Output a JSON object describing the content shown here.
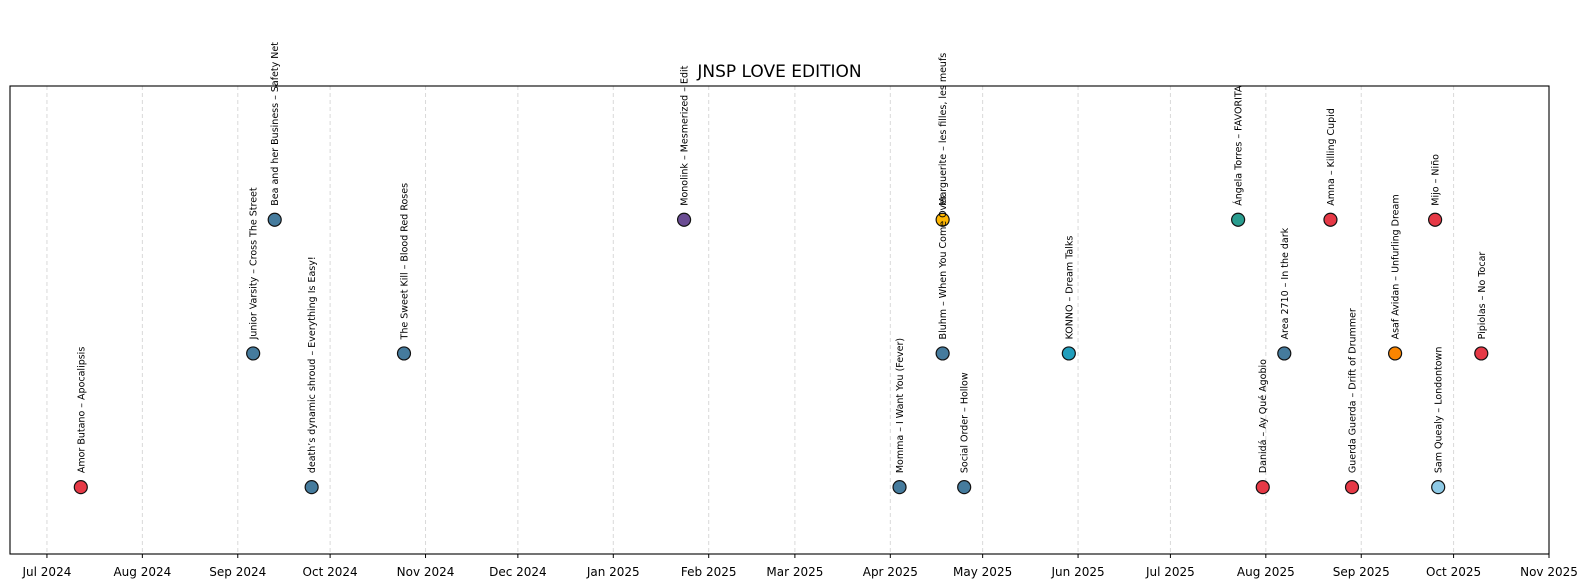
{
  "chart_data": {
    "type": "scatter",
    "title": "JNSP LOVE EDITION",
    "xlabel": "",
    "ylabel": "",
    "x_is_date": true,
    "xlim": [
      "2024-06-19",
      "2025-11-01"
    ],
    "ylim": [
      0.5,
      4.0
    ],
    "y_ticks_visible": false,
    "grid": "vertical dashed at month ticks",
    "x_ticks": [
      {
        "date": "2024-07-01",
        "label": "Jul 2024"
      },
      {
        "date": "2024-08-01",
        "label": "Aug 2024"
      },
      {
        "date": "2024-09-01",
        "label": "Sep 2024"
      },
      {
        "date": "2024-10-01",
        "label": "Oct 2024"
      },
      {
        "date": "2024-11-01",
        "label": "Nov 2024"
      },
      {
        "date": "2024-12-01",
        "label": "Dec 2024"
      },
      {
        "date": "2025-01-01",
        "label": "Jan 2025"
      },
      {
        "date": "2025-02-01",
        "label": "Feb 2025"
      },
      {
        "date": "2025-03-01",
        "label": "Mar 2025"
      },
      {
        "date": "2025-04-01",
        "label": "Apr 2025"
      },
      {
        "date": "2025-05-01",
        "label": "May 2025"
      },
      {
        "date": "2025-06-01",
        "label": "Jun 2025"
      },
      {
        "date": "2025-07-01",
        "label": "Jul 2025"
      },
      {
        "date": "2025-08-01",
        "label": "Aug 2025"
      },
      {
        "date": "2025-09-01",
        "label": "Sep 2025"
      },
      {
        "date": "2025-10-01",
        "label": "Oct 2025"
      },
      {
        "date": "2025-11-01",
        "label": "Nov 2025"
      }
    ],
    "points": [
      {
        "date": "2024-07-12",
        "level": 1,
        "label": "Amor Butano – Apocalipsis",
        "color": "#e63946"
      },
      {
        "date": "2024-09-06",
        "level": 2,
        "label": "Junior Varsity – Cross The Street",
        "color": "#457b9d"
      },
      {
        "date": "2024-09-13",
        "level": 3,
        "label": "Bea and her Business – Safety Net",
        "color": "#457b9d"
      },
      {
        "date": "2024-09-25",
        "level": 1,
        "label": "death’s dynamic shroud – Everything Is Easy!",
        "color": "#457b9d"
      },
      {
        "date": "2024-10-25",
        "level": 2,
        "label": "The Sweet Kill – Blood Red Roses",
        "color": "#457b9d"
      },
      {
        "date": "2025-01-24",
        "level": 3,
        "label": "Monolink – Mesmerized – Edit",
        "color": "#6a4c93"
      },
      {
        "date": "2025-04-04",
        "level": 1,
        "label": "Momma – I Want You (Fever)",
        "color": "#457b9d"
      },
      {
        "date": "2025-04-18",
        "level": 2,
        "label": "Bluhm – When You Come Over",
        "color": "#457b9d"
      },
      {
        "date": "2025-04-18",
        "level": 3,
        "label": "Marguerite – les filles, les meufs",
        "color": "#ffb703"
      },
      {
        "date": "2025-04-25",
        "level": 1,
        "label": "Social Order – Hollow",
        "color": "#457b9d"
      },
      {
        "date": "2025-05-29",
        "level": 2,
        "label": "KONNO – Dream Talks",
        "color": "#219ebc"
      },
      {
        "date": "2025-07-23",
        "level": 3,
        "label": "Ángela Torres – FAVORITA",
        "color": "#2a9d8f"
      },
      {
        "date": "2025-07-31",
        "level": 1,
        "label": "Danidá – Ay Qué Agobio",
        "color": "#e63946"
      },
      {
        "date": "2025-08-07",
        "level": 2,
        "label": "Area 2710 – In the dark",
        "color": "#457b9d"
      },
      {
        "date": "2025-08-22",
        "level": 3,
        "label": "Amna – Killing Cupid",
        "color": "#e63946"
      },
      {
        "date": "2025-08-29",
        "level": 1,
        "label": "Guerda Guerda – Drift of Drummer",
        "color": "#e63946"
      },
      {
        "date": "2025-09-12",
        "level": 2,
        "label": "Asaf Avidan – Unfurling Dream",
        "color": "#fb8500"
      },
      {
        "date": "2025-09-25",
        "level": 3,
        "label": "Mijo – Niño",
        "color": "#e63946"
      },
      {
        "date": "2025-09-26",
        "level": 1,
        "label": "Sam Quealy – Londontown",
        "color": "#8ecae6"
      },
      {
        "date": "2025-10-10",
        "level": 2,
        "label": "Pipiolas – No Tocar",
        "color": "#e63946"
      }
    ]
  }
}
